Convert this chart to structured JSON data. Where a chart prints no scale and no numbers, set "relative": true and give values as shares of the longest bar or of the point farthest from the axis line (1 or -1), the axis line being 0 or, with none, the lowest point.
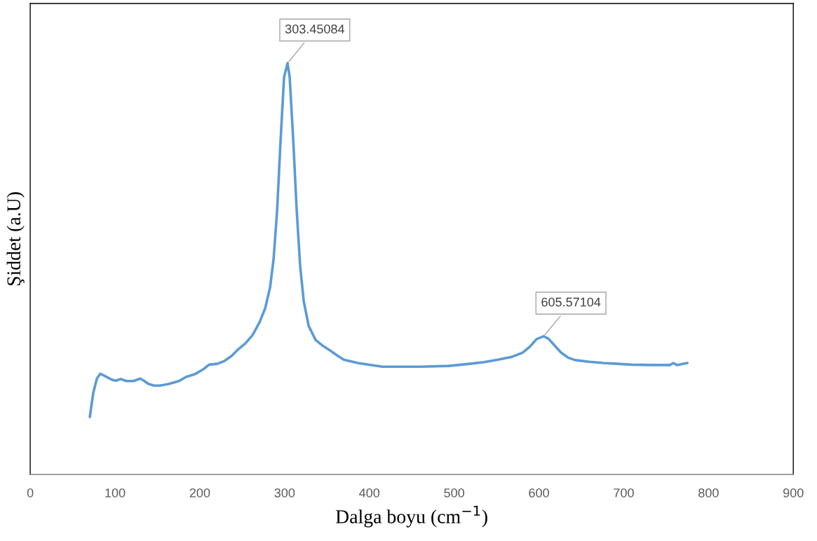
{
  "chart_data": {
    "type": "line",
    "relative": true,
    "xlabel": "Dalga boyu (cm$^{−1}$)",
    "ylabel": "Şiddet (a.U)",
    "xlim": [
      0,
      900
    ],
    "xticks": [
      0,
      100,
      200,
      300,
      400,
      500,
      600,
      700,
      800,
      900
    ],
    "grid": false,
    "legend": false,
    "marker": "none",
    "line_style": "solid",
    "series": [
      {
        "color": "#5b9bd5",
        "x": [
          70.3,
          74.4,
          78.6,
          82.7,
          88.5,
          96.8,
          100.9,
          106.7,
          113.3,
          121.6,
          129.9,
          134,
          139.8,
          146.4,
          153,
          163,
          175.4,
          183.6,
          194.4,
          204.3,
          210.9,
          220.8,
          229.1,
          237.4,
          245.7,
          253.9,
          262.2,
          270.5,
          277.1,
          282.9,
          287,
          291.2,
          295.3,
          299.4,
          303.45,
          306,
          310.2,
          314.3,
          318.4,
          322.6,
          328.4,
          336.6,
          344.9,
          353.2,
          361.5,
          369.7,
          386.3,
          402.8,
          415.2,
          435.9,
          460.7,
          493.8,
          518.6,
          535.1,
          551.7,
          568.2,
          580.6,
          588.9,
          597.2,
          605.57,
          611.3,
          617.9,
          626.2,
          634.5,
          642.8,
          659.3,
          675.8,
          692.4,
          708.9,
          733.7,
          754.4,
          758.5,
          762.7,
          775
        ],
        "values": [
          0.14,
          0.199,
          0.233,
          0.245,
          0.239,
          0.23,
          0.228,
          0.232,
          0.227,
          0.227,
          0.233,
          0.228,
          0.22,
          0.216,
          0.216,
          0.22,
          0.227,
          0.237,
          0.244,
          0.256,
          0.267,
          0.269,
          0.276,
          0.288,
          0.305,
          0.319,
          0.339,
          0.37,
          0.404,
          0.455,
          0.523,
          0.642,
          0.813,
          0.966,
          1.0,
          0.966,
          0.813,
          0.642,
          0.506,
          0.421,
          0.361,
          0.327,
          0.313,
          0.302,
          0.29,
          0.279,
          0.271,
          0.266,
          0.262,
          0.262,
          0.262,
          0.264,
          0.269,
          0.273,
          0.279,
          0.286,
          0.296,
          0.31,
          0.329,
          0.336,
          0.33,
          0.315,
          0.296,
          0.284,
          0.278,
          0.274,
          0.271,
          0.269,
          0.267,
          0.266,
          0.266,
          0.271,
          0.266,
          0.271
        ]
      }
    ],
    "annotations": [
      {
        "text": "303.45084",
        "x": 303.45,
        "y": 1.0
      },
      {
        "text": "605.57104",
        "x": 605.57,
        "y": 0.336
      }
    ]
  }
}
